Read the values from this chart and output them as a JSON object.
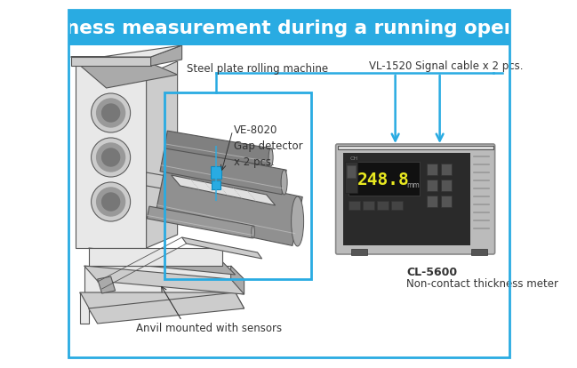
{
  "title": "Thickness measurement during a running operation",
  "title_bg": "#29abe2",
  "title_color": "white",
  "title_fontsize": 15.5,
  "border_color": "#29abe2",
  "bg_color": "white",
  "label_rolling": "Steel plate rolling machine",
  "label_cable": "VL-1520 Signal cable x 2 pcs.",
  "label_detector": "VE-8020\nGap detector\nx 2 pcs.",
  "label_anvil": "Anvil mounted with sensors",
  "label_meter_name": "CL-5600",
  "label_meter_sub": "Non-contact thickness meter",
  "meter_display": "248.8",
  "box_color": "#29abe2",
  "arrow_color": "#29abe2",
  "text_color": "#333333",
  "machine_line_color": "#555555",
  "machine_fill_light": "#e8e8e8",
  "machine_fill_mid": "#cccccc",
  "machine_fill_dark": "#aaaaaa",
  "roller_fill": "#888888",
  "roller_highlight": "#cccccc",
  "meter_body_color": "#bbbbbb",
  "meter_panel_color": "#2a2a2a",
  "meter_display_color": "#1a1a1a",
  "meter_text_color": "#dddd00"
}
